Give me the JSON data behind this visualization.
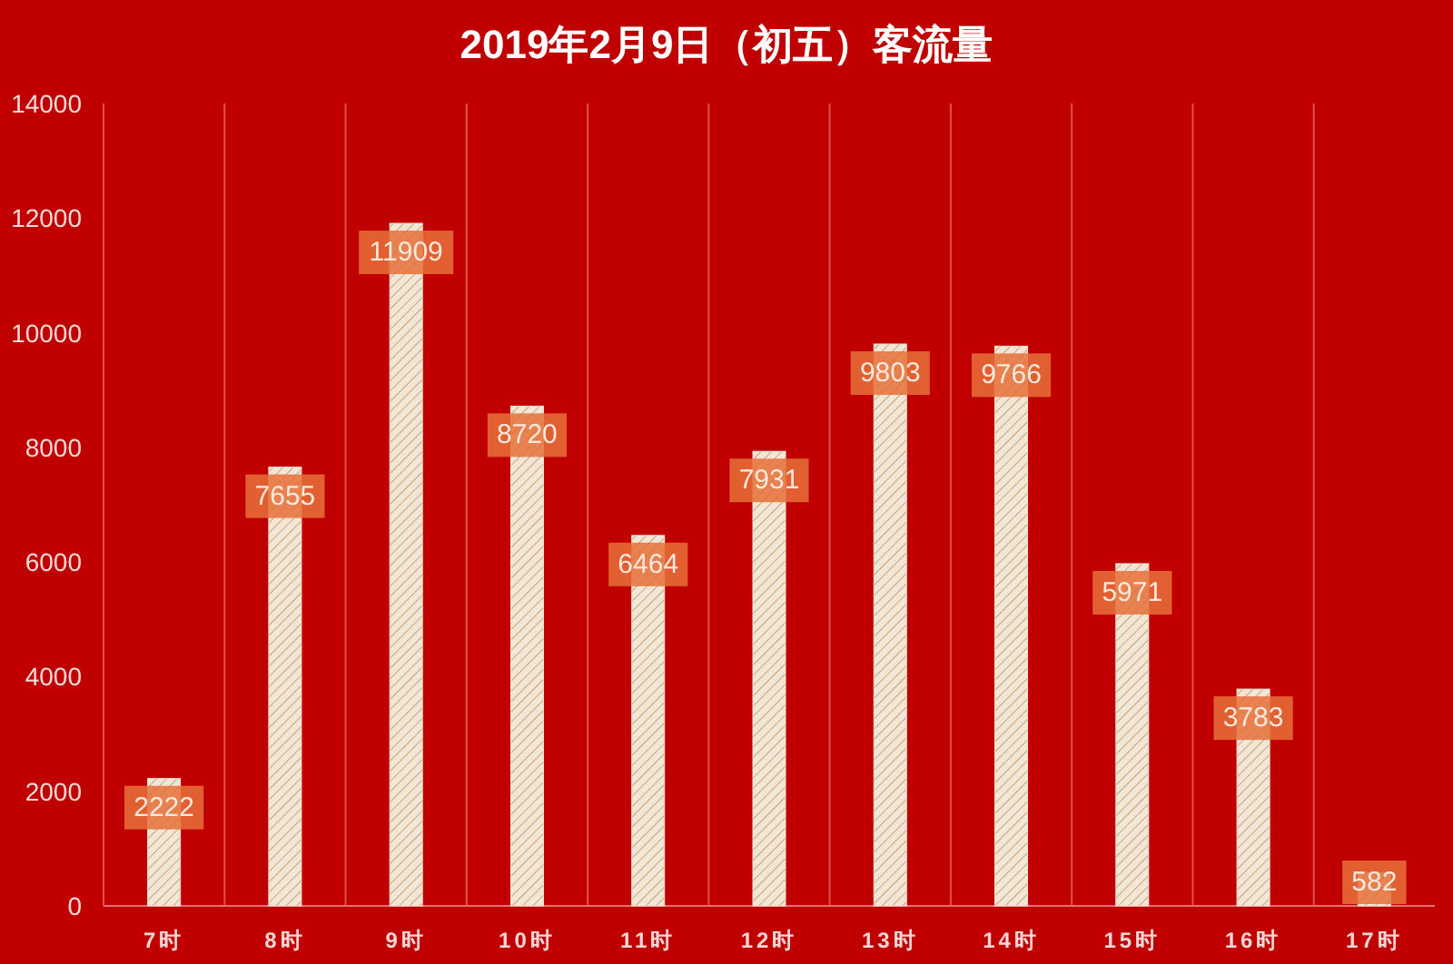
{
  "chart_data": {
    "type": "bar",
    "title": "2019年2月9日（初五）客流量",
    "categories": [
      "7时",
      "8时",
      "9时",
      "10时",
      "11时",
      "12时",
      "13时",
      "14时",
      "15时",
      "16时",
      "17时"
    ],
    "values": [
      2222,
      7655,
      11909,
      8720,
      6464,
      7931,
      9803,
      9766,
      5971,
      3783,
      582
    ],
    "color": "#f2e6d6",
    "ylim": [
      0,
      14000
    ],
    "yticks": [
      0,
      2000,
      4000,
      6000,
      8000,
      10000,
      12000,
      14000
    ],
    "grid": "x",
    "data_labels": true
  }
}
